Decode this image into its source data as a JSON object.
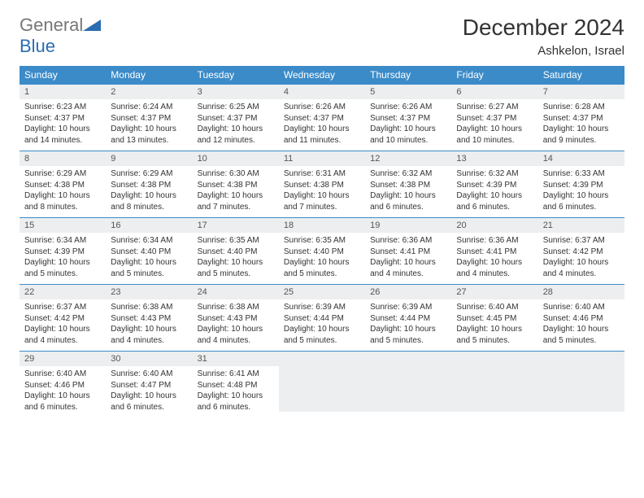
{
  "brand": {
    "part1": "General",
    "part2": "Blue"
  },
  "title": "December 2024",
  "location": "Ashkelon, Israel",
  "style": {
    "header_bg": "#3b8bc9",
    "daynum_bg": "#eceeef",
    "row_border": "#3b8bc9",
    "title_fontsize": 28,
    "location_fontsize": 15,
    "th_fontsize": 12,
    "cell_fontsize": 10
  },
  "days_of_week": [
    "Sunday",
    "Monday",
    "Tuesday",
    "Wednesday",
    "Thursday",
    "Friday",
    "Saturday"
  ],
  "weeks": [
    [
      {
        "n": "1",
        "sr": "6:23 AM",
        "ss": "4:37 PM",
        "dl": "10 hours and 14 minutes."
      },
      {
        "n": "2",
        "sr": "6:24 AM",
        "ss": "4:37 PM",
        "dl": "10 hours and 13 minutes."
      },
      {
        "n": "3",
        "sr": "6:25 AM",
        "ss": "4:37 PM",
        "dl": "10 hours and 12 minutes."
      },
      {
        "n": "4",
        "sr": "6:26 AM",
        "ss": "4:37 PM",
        "dl": "10 hours and 11 minutes."
      },
      {
        "n": "5",
        "sr": "6:26 AM",
        "ss": "4:37 PM",
        "dl": "10 hours and 10 minutes."
      },
      {
        "n": "6",
        "sr": "6:27 AM",
        "ss": "4:37 PM",
        "dl": "10 hours and 10 minutes."
      },
      {
        "n": "7",
        "sr": "6:28 AM",
        "ss": "4:37 PM",
        "dl": "10 hours and 9 minutes."
      }
    ],
    [
      {
        "n": "8",
        "sr": "6:29 AM",
        "ss": "4:38 PM",
        "dl": "10 hours and 8 minutes."
      },
      {
        "n": "9",
        "sr": "6:29 AM",
        "ss": "4:38 PM",
        "dl": "10 hours and 8 minutes."
      },
      {
        "n": "10",
        "sr": "6:30 AM",
        "ss": "4:38 PM",
        "dl": "10 hours and 7 minutes."
      },
      {
        "n": "11",
        "sr": "6:31 AM",
        "ss": "4:38 PM",
        "dl": "10 hours and 7 minutes."
      },
      {
        "n": "12",
        "sr": "6:32 AM",
        "ss": "4:38 PM",
        "dl": "10 hours and 6 minutes."
      },
      {
        "n": "13",
        "sr": "6:32 AM",
        "ss": "4:39 PM",
        "dl": "10 hours and 6 minutes."
      },
      {
        "n": "14",
        "sr": "6:33 AM",
        "ss": "4:39 PM",
        "dl": "10 hours and 6 minutes."
      }
    ],
    [
      {
        "n": "15",
        "sr": "6:34 AM",
        "ss": "4:39 PM",
        "dl": "10 hours and 5 minutes."
      },
      {
        "n": "16",
        "sr": "6:34 AM",
        "ss": "4:40 PM",
        "dl": "10 hours and 5 minutes."
      },
      {
        "n": "17",
        "sr": "6:35 AM",
        "ss": "4:40 PM",
        "dl": "10 hours and 5 minutes."
      },
      {
        "n": "18",
        "sr": "6:35 AM",
        "ss": "4:40 PM",
        "dl": "10 hours and 5 minutes."
      },
      {
        "n": "19",
        "sr": "6:36 AM",
        "ss": "4:41 PM",
        "dl": "10 hours and 4 minutes."
      },
      {
        "n": "20",
        "sr": "6:36 AM",
        "ss": "4:41 PM",
        "dl": "10 hours and 4 minutes."
      },
      {
        "n": "21",
        "sr": "6:37 AM",
        "ss": "4:42 PM",
        "dl": "10 hours and 4 minutes."
      }
    ],
    [
      {
        "n": "22",
        "sr": "6:37 AM",
        "ss": "4:42 PM",
        "dl": "10 hours and 4 minutes."
      },
      {
        "n": "23",
        "sr": "6:38 AM",
        "ss": "4:43 PM",
        "dl": "10 hours and 4 minutes."
      },
      {
        "n": "24",
        "sr": "6:38 AM",
        "ss": "4:43 PM",
        "dl": "10 hours and 4 minutes."
      },
      {
        "n": "25",
        "sr": "6:39 AM",
        "ss": "4:44 PM",
        "dl": "10 hours and 5 minutes."
      },
      {
        "n": "26",
        "sr": "6:39 AM",
        "ss": "4:44 PM",
        "dl": "10 hours and 5 minutes."
      },
      {
        "n": "27",
        "sr": "6:40 AM",
        "ss": "4:45 PM",
        "dl": "10 hours and 5 minutes."
      },
      {
        "n": "28",
        "sr": "6:40 AM",
        "ss": "4:46 PM",
        "dl": "10 hours and 5 minutes."
      }
    ],
    [
      {
        "n": "29",
        "sr": "6:40 AM",
        "ss": "4:46 PM",
        "dl": "10 hours and 6 minutes."
      },
      {
        "n": "30",
        "sr": "6:40 AM",
        "ss": "4:47 PM",
        "dl": "10 hours and 6 minutes."
      },
      {
        "n": "31",
        "sr": "6:41 AM",
        "ss": "4:48 PM",
        "dl": "10 hours and 6 minutes."
      },
      null,
      null,
      null,
      null
    ]
  ],
  "labels": {
    "sunrise": "Sunrise:",
    "sunset": "Sunset:",
    "daylight": "Daylight:"
  }
}
